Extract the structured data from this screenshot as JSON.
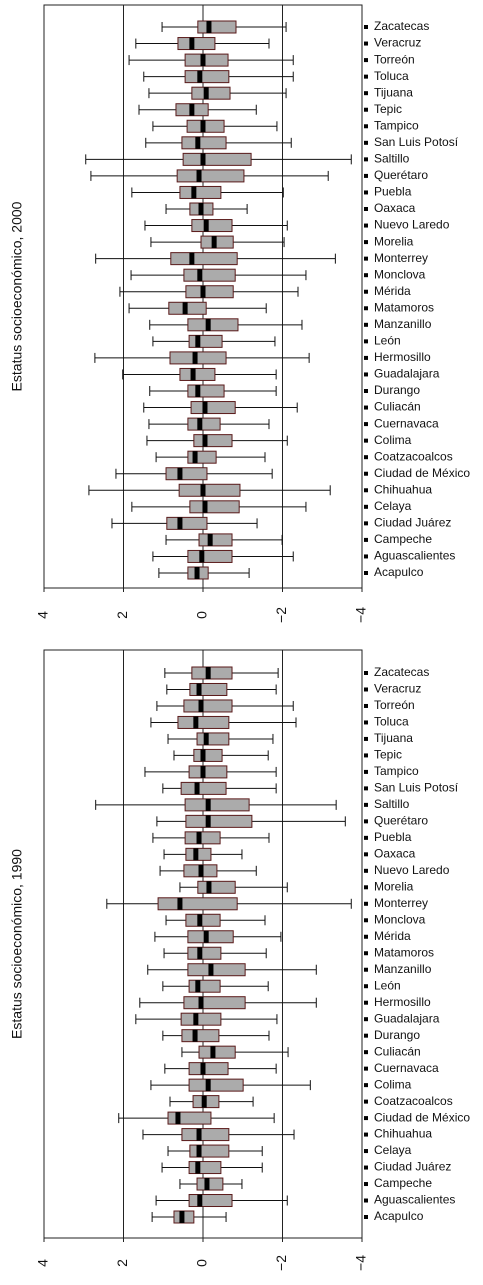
{
  "chart_data": [
    {
      "type": "box",
      "ylabel": "Estatus socioeconómico, 2000",
      "categories": [
        "Zacatecas",
        "Veracruz",
        "Torreón",
        "Toluca",
        "Tijuana",
        "Tepic",
        "Tampico",
        "San Luis Potosí",
        "Saltillo",
        "Querétaro",
        "Puebla",
        "Oaxaca",
        "Nuevo Laredo",
        "Morelia",
        "Monterrey",
        "Monclova",
        "Mérida",
        "Matamoros",
        "Manzanillo",
        "León",
        "Hermosillo",
        "Guadalajara",
        "Durango",
        "Culiacán",
        "Cuernavaca",
        "Colima",
        "Coatzacoalcos",
        "Ciudad de México",
        "Chihuahua",
        "Celaya",
        "Ciudad Juárez",
        "Campeche",
        "Aguascalientes",
        "Acapulco"
      ],
      "whisker_high": [
        1.03,
        1.69,
        1.86,
        1.49,
        1.36,
        1.61,
        1.26,
        1.44,
        2.95,
        2.82,
        1.79,
        0.93,
        1.46,
        1.31,
        2.7,
        1.81,
        2.09,
        1.86,
        1.34,
        1.26,
        2.72,
        2.02,
        1.34,
        1.49,
        1.36,
        1.41,
        1.18,
        2.19,
        2.87,
        1.79,
        2.29,
        0.93,
        1.26,
        1.11
      ],
      "q3": [
        0.13,
        0.63,
        0.45,
        0.45,
        0.28,
        0.68,
        0.4,
        0.53,
        0.5,
        0.65,
        0.58,
        0.33,
        0.28,
        0.05,
        0.81,
        0.48,
        0.43,
        0.86,
        0.38,
        0.35,
        0.83,
        0.58,
        0.38,
        0.3,
        0.38,
        0.23,
        0.38,
        0.93,
        0.6,
        0.33,
        0.91,
        0.1,
        0.38,
        0.38
      ],
      "median": [
        -0.15,
        0.28,
        0,
        0.08,
        -0.08,
        0.28,
        0,
        0.13,
        0,
        0.1,
        0.23,
        0.05,
        -0.08,
        -0.28,
        0.28,
        0.08,
        0,
        0.45,
        -0.13,
        0.13,
        0.2,
        0.25,
        0.13,
        -0.05,
        0.08,
        -0.05,
        0.2,
        0.58,
        0,
        -0.05,
        0.58,
        -0.18,
        0.03,
        0.15
      ],
      "q1": [
        -0.83,
        -0.3,
        -0.63,
        -0.65,
        -0.68,
        -0.13,
        -0.53,
        -0.58,
        -1.21,
        -1.03,
        -0.45,
        -0.25,
        -0.73,
        -0.76,
        -0.86,
        -0.81,
        -0.76,
        -0.08,
        -0.88,
        -0.48,
        -0.58,
        -0.3,
        -0.53,
        -0.81,
        -0.43,
        -0.73,
        -0.33,
        -0.1,
        -0.93,
        -0.91,
        -0.1,
        -0.73,
        -0.73,
        -0.13
      ],
      "whisker_low": [
        -2.09,
        -1.66,
        -2.27,
        -2.27,
        -2.09,
        -1.34,
        -1.86,
        -2.22,
        -3.73,
        -3.15,
        -2.02,
        -1.11,
        -2.12,
        -2.04,
        -3.33,
        -2.59,
        -2.39,
        -1.59,
        -2.49,
        -1.81,
        -2.67,
        -1.84,
        -1.84,
        -2.37,
        -1.66,
        -2.12,
        -1.56,
        -1.74,
        -3.2,
        -2.59,
        -1.36,
        -1.99,
        -2.27,
        -1.16
      ],
      "xlim": [
        4,
        -4
      ],
      "xticks": [
        4,
        2,
        0,
        {
          "value": -2,
          "label": "−2"
        },
        {
          "value": -4,
          "label": "−4"
        }
      ],
      "grid": true,
      "box_color": "#ababab",
      "edge_color": "#5a1a1a"
    },
    {
      "type": "box",
      "ylabel": "Estatus socioeconómico, 1990",
      "categories": [
        "Zacatecas",
        "Veracruz",
        "Torreón",
        "Toluca",
        "Tijuana",
        "Tepic",
        "Tampico",
        "San Luis Potosí",
        "Saltillo",
        "Querétaro",
        "Puebla",
        "Oaxaca",
        "Nuevo Laredo",
        "Morelia",
        "Monterrey",
        "Monclova",
        "Mérida",
        "Matamoros",
        "Manzanillo",
        "León",
        "Hermosillo",
        "Guadalajara",
        "Durango",
        "Culiacán",
        "Cuernavaca",
        "Colima",
        "Coatzacoalcos",
        "Ciudad de México",
        "Chihuahua",
        "Celaya",
        "Ciudad Juárez",
        "Campeche",
        "Aguascalientes",
        "Acapulco"
      ],
      "whisker_high": [
        0.96,
        0.91,
        1.16,
        1.31,
        0.88,
        0.73,
        1.46,
        1.01,
        2.7,
        1.16,
        1.26,
        0.98,
        1.08,
        0.58,
        2.42,
        0.93,
        1.21,
        0.98,
        1.39,
        1.01,
        1.59,
        1.69,
        1.01,
        0.53,
        0.96,
        1.31,
        0.83,
        2.12,
        1.51,
        0.88,
        1.03,
        0.58,
        1.18,
        1.28
      ],
      "q3": [
        0.28,
        0.33,
        0.48,
        0.63,
        0.15,
        0.23,
        0.35,
        0.55,
        0.45,
        0.43,
        0.45,
        0.43,
        0.48,
        0.13,
        1.13,
        0.43,
        0.38,
        0.38,
        0.38,
        0.35,
        0.48,
        0.55,
        0.53,
        0.1,
        0.35,
        0.35,
        0.25,
        0.88,
        0.53,
        0.33,
        0.35,
        0.15,
        0.35,
        0.73
      ],
      "median": [
        -0.13,
        0.1,
        0.05,
        0.18,
        -0.08,
        0,
        0,
        0.15,
        -0.13,
        -0.13,
        0.1,
        0.18,
        0.05,
        -0.15,
        0.58,
        0.08,
        -0.08,
        0.08,
        -0.2,
        0.13,
        0.05,
        0.18,
        0.2,
        -0.25,
        0,
        -0.13,
        -0.03,
        0.63,
        0.1,
        0.1,
        0.13,
        -0.1,
        0.08,
        0.53
      ],
      "q1": [
        -0.73,
        -0.6,
        -0.73,
        -0.65,
        -0.65,
        -0.48,
        -0.6,
        -0.58,
        -1.16,
        -1.23,
        -0.43,
        -0.2,
        -0.35,
        -0.81,
        -0.86,
        -0.43,
        -0.76,
        -0.45,
        -1.06,
        -0.43,
        -1.06,
        -0.45,
        -0.4,
        -0.81,
        -0.63,
        -1.01,
        -0.4,
        -0.2,
        -0.65,
        -0.65,
        -0.45,
        -0.5,
        -0.73,
        0.23
      ],
      "whisker_low": [
        -1.89,
        -1.84,
        -2.27,
        -2.34,
        -1.76,
        -1.64,
        -1.84,
        -1.84,
        -3.35,
        -3.58,
        -1.66,
        -0.98,
        -1.34,
        -2.12,
        -3.73,
        -1.56,
        -1.96,
        -1.59,
        -2.85,
        -1.64,
        -2.85,
        -1.86,
        -1.66,
        -2.14,
        -1.84,
        -2.7,
        -1.26,
        -1.79,
        -2.29,
        -1.49,
        -1.49,
        -0.98,
        -2.12,
        -0.58
      ],
      "xlim": [
        4,
        -4
      ],
      "xticks": [
        4,
        2,
        0,
        {
          "value": -2,
          "label": "−2"
        },
        {
          "value": -4,
          "label": "−4"
        }
      ],
      "grid": true,
      "box_color": "#ababab",
      "edge_color": "#5a1a1a"
    }
  ]
}
